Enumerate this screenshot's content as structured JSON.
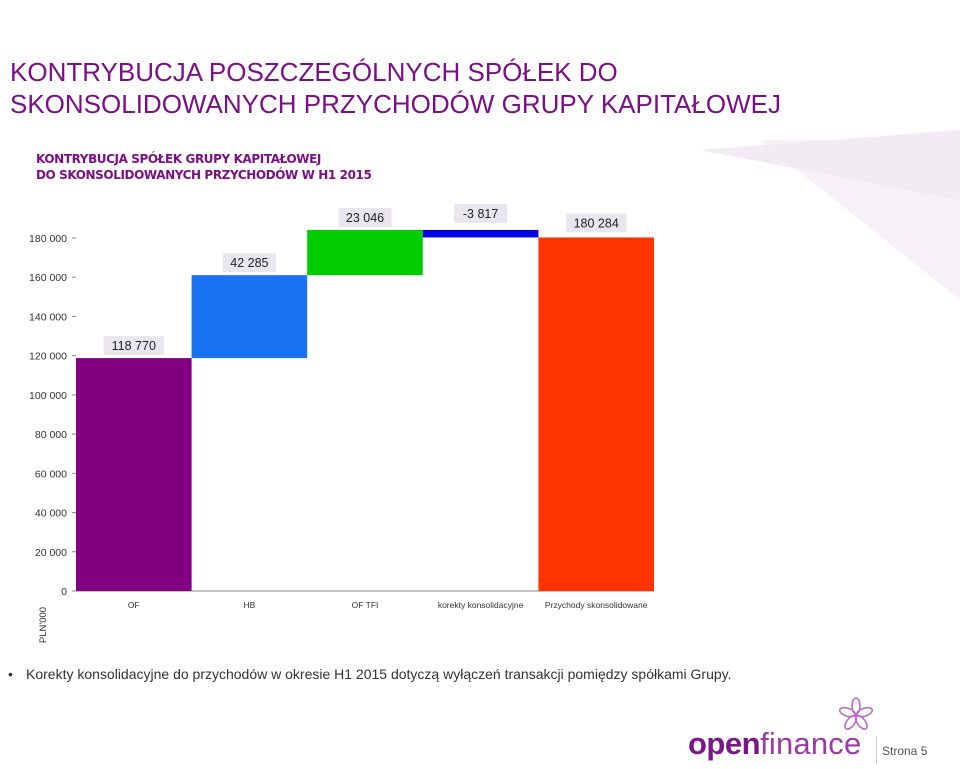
{
  "slide": {
    "title": "KONTRYBUCJA POSZCZEGÓLNYCH SPÓŁEK DO SKONSOLIDOWANYCH PRZYCHODÓW GRUPY KAPITAŁOWEJ",
    "note": "Korekty konsolidacyjne do przychodów w okresie H1 2015 dotyczą wyłączeń transakcji pomiędzy spółkami Grupy.",
    "bullet": "•",
    "page": "Strona 5",
    "logo": {
      "part1": "open",
      "part2": "finance"
    },
    "colors": {
      "title": "#7b0f86",
      "logo": "#7a1786"
    }
  },
  "chart_data": {
    "type": "bar",
    "subtype": "waterfall",
    "title_line1": "KONTRYBUCJA SPÓŁEK GRUPY KAPITAŁOWEJ",
    "title_line2": "DO SKONSOLIDOWANYCH PRZYCHODÓW W H1 2015",
    "ylabel": "PLN'000",
    "ylim": [
      0,
      180000
    ],
    "yticks": [
      0,
      20000,
      40000,
      60000,
      80000,
      100000,
      120000,
      140000,
      160000,
      180000
    ],
    "ytick_labels": [
      "0",
      "20 000",
      "40 000",
      "60 000",
      "80 000",
      "100 000",
      "120 000",
      "140 000",
      "160 000",
      "180 000"
    ],
    "categories": [
      "OF",
      "HB",
      "OF TFI",
      "korekty konsolidacyjne",
      "Przychody skonsolidowane"
    ],
    "values": [
      118770,
      42285,
      23046,
      -3817,
      180284
    ],
    "value_labels": [
      "118 770",
      "42 285",
      "23 046",
      "-3 817",
      "180 284"
    ],
    "bar_kind": [
      "increase",
      "increase",
      "increase",
      "decrease",
      "total"
    ],
    "colors": [
      "#800080",
      "#1a73f0",
      "#00cc00",
      "#0000e6",
      "#ff3300"
    ],
    "grid": false,
    "legend": "none"
  }
}
